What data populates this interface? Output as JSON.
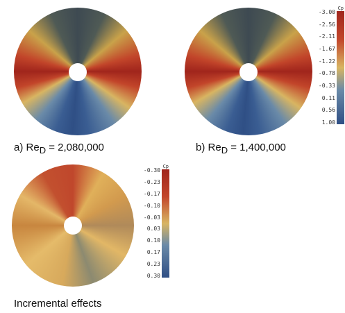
{
  "panels": [
    {
      "caption": {
        "prefix": "a) Re",
        "subscript": "D",
        "suffix": " = 2,080,000"
      }
    },
    {
      "caption": {
        "prefix": "b) Re",
        "subscript": "D",
        "suffix": " = 1,400,000"
      },
      "colorbar": {
        "label": "Cp",
        "ticks": [
          "-3.00",
          "-2.56",
          "-2.11",
          "-1.67",
          "-1.22",
          "-0.78",
          "-0.33",
          "0.11",
          "0.56",
          "1.00"
        ]
      }
    },
    {
      "caption": {
        "text": "Incremental effects"
      },
      "colorbar": {
        "label": "Cp",
        "ticks": [
          "-0.30",
          "-0.23",
          "-0.17",
          "-0.10",
          "-0.03",
          "0.03",
          "0.10",
          "0.17",
          "0.23",
          "0.30"
        ]
      }
    }
  ]
}
